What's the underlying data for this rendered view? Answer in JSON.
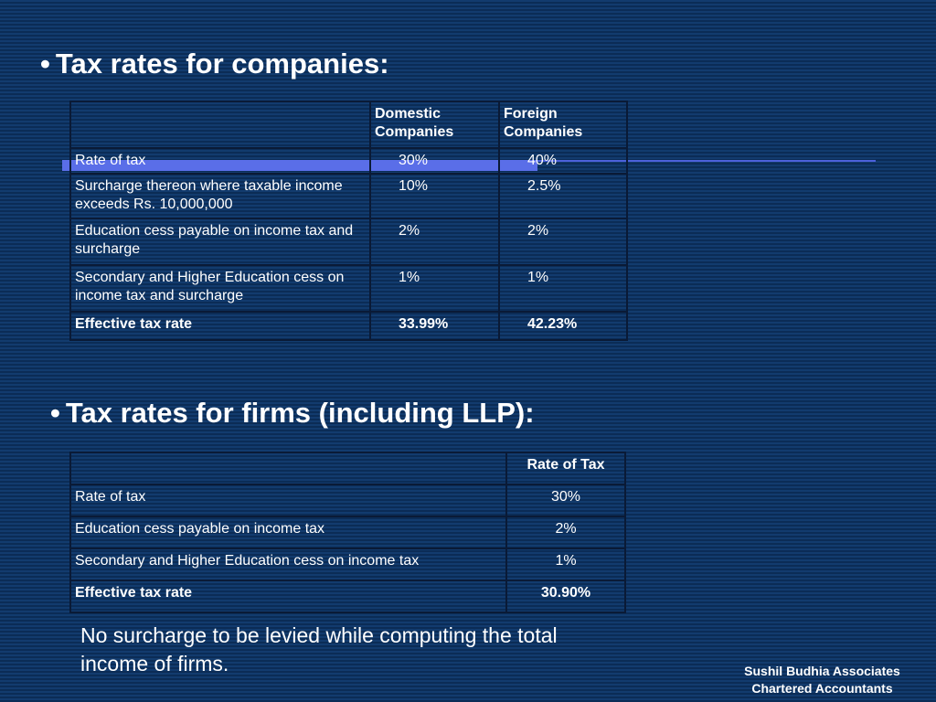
{
  "section1": {
    "bullet": "•",
    "title": "Tax rates for companies:",
    "header": {
      "col1": "",
      "col2": "Domestic Companies",
      "col3": "Foreign Companies"
    },
    "rows": [
      {
        "label": "Rate of tax",
        "domestic": "30%",
        "foreign": "40%"
      },
      {
        "label": "Surcharge thereon where taxable income exceeds Rs. 10,000,000",
        "domestic": "10%",
        "foreign": "2.5%"
      },
      {
        "label": "Education cess payable on income tax and surcharge",
        "domestic": "2%",
        "foreign": "2%"
      },
      {
        "label": "Secondary and Higher Education cess on income tax and surcharge",
        "domestic": "1%",
        "foreign": "1%"
      }
    ],
    "effective": {
      "label": "Effective tax rate",
      "domestic": "33.99%",
      "foreign": "42.23%"
    }
  },
  "section2": {
    "bullet": "•",
    "title": "Tax rates for firms (including LLP):",
    "header": {
      "col1": "",
      "col2": "Rate of Tax"
    },
    "rows": [
      {
        "label": "Rate of tax",
        "rate": "30%"
      },
      {
        "label": "Education cess payable on income tax",
        "rate": "2%"
      },
      {
        "label": "Secondary and Higher Education cess on income tax",
        "rate": "1%"
      }
    ],
    "effective": {
      "label": "Effective tax rate",
      "rate": "30.90%"
    }
  },
  "note": "No surcharge to be levied while computing the total income of firms.",
  "footer": {
    "line1": "Sushil Budhia Associates",
    "line2": "Chartered Accountants"
  },
  "colors": {
    "background": "#0f3566",
    "accent": "#5a6ee8",
    "text": "#ffffff",
    "grid": "#0a1a36"
  }
}
